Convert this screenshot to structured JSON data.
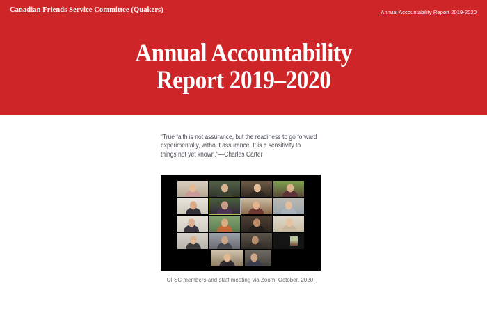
{
  "header": {
    "site_name": "Canadian Friends Service Committee (Quakers)",
    "nav_link": "Annual Accountability Report 2019-2020",
    "title_line1": "Annual Accountability",
    "title_line2": "Report 2019–2020",
    "background_color": "#ce2529",
    "text_color": "#ffffff"
  },
  "main": {
    "quote": {
      "lines": [
        "“True faith is not assurance, but the readiness to go forward",
        "experimentally, without assurance. It is a sensitivity to",
        "things not yet known.”—Charles Carter"
      ],
      "attribution": "Charles Carter",
      "text_color": "#4a4e55"
    },
    "photo": {
      "alt": "Zoom meeting grid of CFSC members and staff",
      "caption": "CFSC members and staff meeting via Zoom, October, 2020.",
      "background_color": "#000000",
      "active_speaker_frame_color": "#aebf4e",
      "tiles": [
        [
          {
            "bg": [
              "#d9cfc0",
              "#b7a892"
            ],
            "skin": "#e3bb95",
            "body": "#c99a96",
            "fx": 50
          },
          {
            "bg": [
              "#55624a",
              "#2f3529"
            ],
            "skin": "#d6b28e",
            "body": "#3d4434",
            "fx": 50
          },
          {
            "bg": [
              "#6d5c49",
              "#33291f"
            ],
            "skin": "#e2bb97",
            "body": "#2e2620",
            "fx": 52
          },
          {
            "bg": [
              "#7fa04f",
              "#5a4a38"
            ],
            "skin": "#dcb18b",
            "body": "#5e3038",
            "fx": 55
          }
        ],
        [
          {
            "bg": [
              "#e9e5dd",
              "#cfc9bd"
            ],
            "skin": "#d9a98a",
            "body": "#33323b",
            "fx": 52
          },
          {
            "bg": [
              "#49603c",
              "#34283a"
            ],
            "skin": "#c99b87",
            "body": "#4a3356",
            "fx": 50,
            "frame": "#aebf4e"
          },
          {
            "bg": [
              "#cbbb9e",
              "#8a6a4e"
            ],
            "skin": "#e2b28c",
            "body": "#6e3a33",
            "fx": 48
          },
          {
            "bg": [
              "#bcb8b0",
              "#9aa6ae"
            ],
            "skin": "#e2be9e",
            "body": "#aab4bc",
            "fx": 50
          }
        ],
        [
          {
            "bg": [
              "#e6e2da",
              "#d2cec6"
            ],
            "skin": "#deb092",
            "body": "#3b3742",
            "fx": 46
          },
          {
            "bg": [
              "#85a471",
              "#5d7d52"
            ],
            "skin": "#d9a97f",
            "body": "#c56a36",
            "fx": 50
          },
          {
            "bg": [
              "#4e4034",
              "#2b241e"
            ],
            "skin": "#bc8a66",
            "body": "#241f1b",
            "fx": 50
          },
          {
            "bg": [
              "#e0dacd",
              "#cbbda4"
            ],
            "skin": "#e6c2a2",
            "body": "#c9b79b",
            "fx": 52
          }
        ],
        [
          {
            "bg": [
              "#d6d2ca",
              "#b8b4ac"
            ],
            "skin": "#dab694",
            "body": "#3c3c3c",
            "fx": 52
          },
          {
            "bg": [
              "#9ba1a9",
              "#6a6a72"
            ],
            "skin": "#cba486",
            "body": "#46464e",
            "fx": 50
          },
          {
            "bg": [
              "#5c544a",
              "#2f2b27"
            ],
            "skin": "#b8906e",
            "body": "#332e2a",
            "fx": 45
          },
          {
            "bg": [
              "#1d1d1d",
              "#141414"
            ],
            "skin": "#c9a274",
            "body": "#384024",
            "fx": 70,
            "inset": true
          }
        ],
        [
          {
            "bg": [
              "#cfc1aa",
              "#8c7a62"
            ],
            "skin": "#e0b892",
            "body": "#2f2b31",
            "fx": 50,
            "w": 47
          },
          {
            "bg": [
              "#6e6a62",
              "#44403c"
            ],
            "skin": "#cfa585",
            "body": "#3a3e4e",
            "fx": 35,
            "w": 38
          }
        ]
      ]
    }
  }
}
